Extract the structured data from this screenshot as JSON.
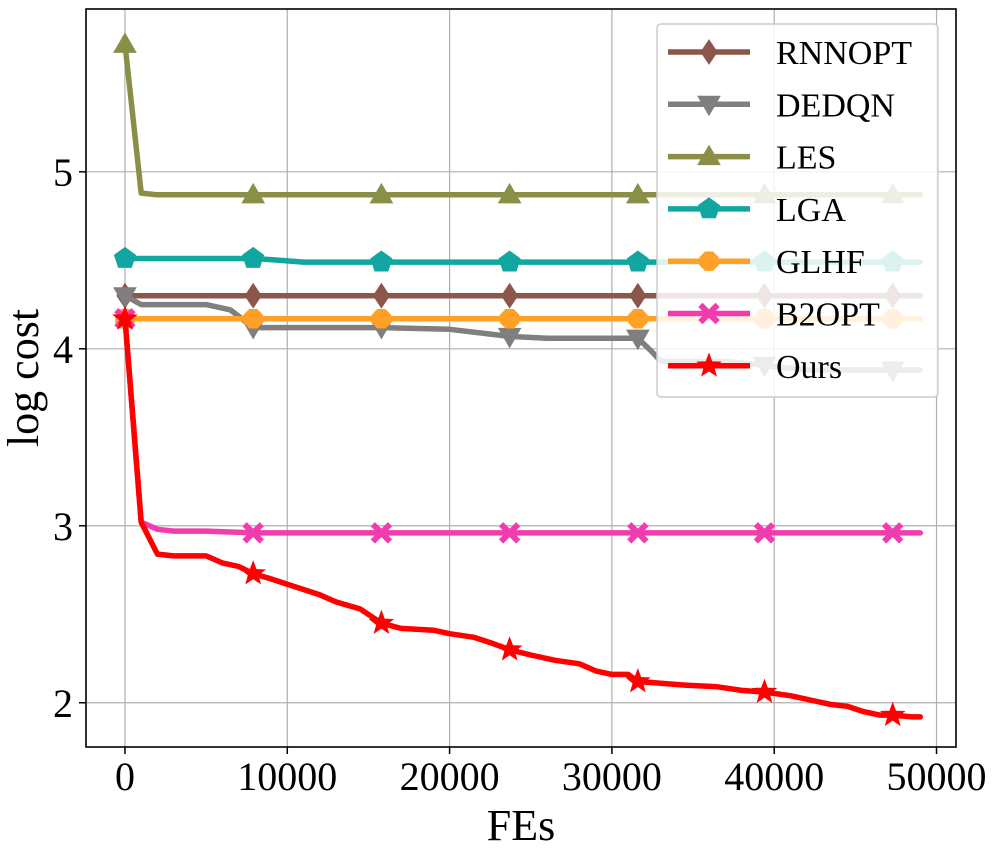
{
  "chart_data": {
    "type": "line",
    "title": "",
    "xlabel": "FEs",
    "ylabel": "log cost",
    "xlim": [
      -2400,
      51200
    ],
    "ylim": [
      1.75,
      5.92
    ],
    "xticks": [
      0,
      10000,
      20000,
      30000,
      40000,
      50000
    ],
    "xtick_labels": [
      "0",
      "10000",
      "20000",
      "30000",
      "40000",
      "50000"
    ],
    "yticks": [
      2,
      3,
      4,
      5
    ],
    "ytick_labels": [
      "2",
      "3",
      "4",
      "5"
    ],
    "grid": true,
    "legend_position": "top-right",
    "series": [
      {
        "name": "RNNOPT",
        "color": "#8c564b",
        "marker": "thin_diamond",
        "x": [
          0,
          49000
        ],
        "y": [
          4.3,
          4.3
        ],
        "marker_x": [
          0,
          7900,
          15800,
          23700,
          31600,
          39400,
          47300
        ]
      },
      {
        "name": "DEDQN",
        "color": "#7f7f7f",
        "marker": "triangle_down",
        "x": [
          0,
          1000,
          5000,
          6500,
          7900,
          15800,
          20000,
          23700,
          26000,
          31600,
          32500,
          33000,
          37000,
          42000,
          49000
        ],
        "y": [
          4.3,
          4.25,
          4.25,
          4.22,
          4.12,
          4.12,
          4.11,
          4.07,
          4.06,
          4.06,
          3.98,
          3.93,
          3.93,
          3.88,
          3.88
        ],
        "marker_x": [
          0,
          7900,
          15800,
          23700,
          31600,
          39400,
          47300
        ]
      },
      {
        "name": "LES",
        "color": "#8a8f47",
        "marker": "triangle_up",
        "x": [
          0,
          1000,
          2000,
          49000
        ],
        "y": [
          5.72,
          4.88,
          4.87,
          4.87
        ],
        "marker_x": [
          0,
          7900,
          15800,
          23700,
          31600,
          39400,
          47300
        ]
      },
      {
        "name": "LGA",
        "color": "#12a6a0",
        "marker": "pentagon",
        "x": [
          0,
          7900,
          9500,
          11000,
          15800,
          49000
        ],
        "y": [
          4.51,
          4.51,
          4.5,
          4.49,
          4.49,
          4.49
        ],
        "marker_x": [
          0,
          7900,
          15800,
          23700,
          31600,
          39400,
          47300
        ]
      },
      {
        "name": "GLHF",
        "color": "#ffa126",
        "marker": "octagon",
        "x": [
          0,
          49000
        ],
        "y": [
          4.17,
          4.17
        ],
        "marker_x": [
          0,
          7900,
          15800,
          23700,
          31600,
          39400,
          47300
        ]
      },
      {
        "name": "B2OPT",
        "color": "#f03cae",
        "marker": "x_filled",
        "x": [
          0,
          1000,
          2000,
          3000,
          5000,
          7900,
          49000
        ],
        "y": [
          4.17,
          3.02,
          2.98,
          2.97,
          2.97,
          2.96,
          2.96
        ],
        "marker_x": [
          0,
          7900,
          15800,
          23700,
          31600,
          39400,
          47300
        ]
      },
      {
        "name": "Ours",
        "color": "#ff0000",
        "marker": "star",
        "x": [
          0,
          1000,
          2000,
          3000,
          5000,
          6000,
          7000,
          7900,
          9000,
          10000,
          11000,
          12000,
          13000,
          14500,
          15800,
          17000,
          19000,
          20000,
          21500,
          22500,
          23700,
          25000,
          26500,
          28000,
          29000,
          30000,
          31000,
          31600,
          33000,
          34500,
          36500,
          38000,
          39400,
          41000,
          42500,
          43500,
          44500,
          45500,
          46500,
          47300,
          48500,
          49000
        ],
        "y": [
          4.17,
          3.02,
          2.84,
          2.83,
          2.83,
          2.79,
          2.77,
          2.73,
          2.7,
          2.67,
          2.64,
          2.61,
          2.57,
          2.53,
          2.45,
          2.42,
          2.41,
          2.39,
          2.37,
          2.34,
          2.3,
          2.27,
          2.24,
          2.22,
          2.18,
          2.16,
          2.16,
          2.12,
          2.11,
          2.1,
          2.09,
          2.07,
          2.06,
          2.04,
          2.01,
          1.99,
          1.98,
          1.95,
          1.93,
          1.93,
          1.92,
          1.92
        ],
        "marker_x": [
          0,
          7900,
          15800,
          23700,
          31600,
          39400,
          47300
        ]
      }
    ]
  }
}
